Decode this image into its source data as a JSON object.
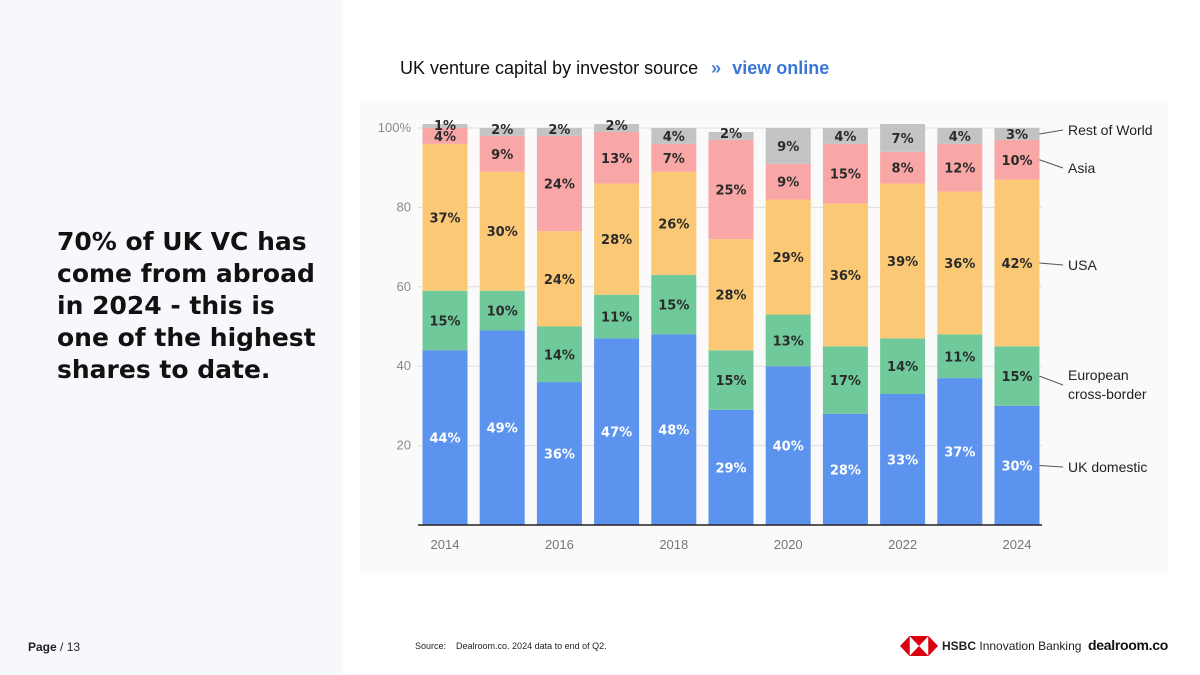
{
  "headline": "70% of UK VC has come from abroad in 2024 - this is one of the highest shares to date.",
  "page": {
    "label": "Page",
    "sep": " / ",
    "number": "13"
  },
  "chart_title": {
    "text": "UK venture capital by investor source",
    "chevron": "»",
    "link": "view online"
  },
  "source": {
    "label": "Source:",
    "text": "Dealroom.co. 2024 data to end of Q2."
  },
  "logos": {
    "hsbc_bold": "HSBC",
    "hsbc_rest": "Innovation Banking",
    "dealroom": "dealroom.co"
  },
  "colors": {
    "uk_domestic": "#5b93ee",
    "european": "#6fc99a",
    "usa": "#fbc875",
    "asia": "#f8a6a6",
    "rest_of_world": "#c3c3c3",
    "hsbc_red": "#db0011"
  },
  "chart_data": {
    "type": "bar",
    "stacked": true,
    "title": "UK venture capital by investor source",
    "categories": [
      "2014",
      "2015",
      "2016",
      "2017",
      "2018",
      "2019",
      "2020",
      "2021",
      "2022",
      "2023",
      "2024"
    ],
    "x_tick_labels": [
      "2014",
      "",
      "2016",
      "",
      "2018",
      "",
      "2020",
      "",
      "2022",
      "",
      "2024"
    ],
    "y_ticks": [
      "20",
      "40",
      "60",
      "80",
      "100%"
    ],
    "y_tick_values": [
      20,
      40,
      60,
      80,
      100
    ],
    "ylim": [
      0,
      100
    ],
    "series": [
      {
        "name": "UK domestic",
        "key": "uk_domestic",
        "values": [
          44,
          49,
          36,
          47,
          48,
          29,
          40,
          28,
          33,
          37,
          30
        ],
        "labels": [
          "44%",
          "49%",
          "36%",
          "47%",
          "48%",
          "29%",
          "40%",
          "28%",
          "33%",
          "37%",
          "30%"
        ]
      },
      {
        "name": "European cross-border",
        "key": "european",
        "values": [
          15,
          10,
          14,
          11,
          15,
          15,
          13,
          17,
          14,
          11,
          15
        ],
        "labels": [
          "15%",
          "10%",
          "14%",
          "11%",
          "15%",
          "15%",
          "13%",
          "17%",
          "14%",
          "11%",
          "15%"
        ]
      },
      {
        "name": "USA",
        "key": "usa",
        "values": [
          37,
          30,
          24,
          28,
          26,
          28,
          29,
          36,
          39,
          36,
          42
        ],
        "labels": [
          "37%",
          "30%",
          "24%",
          "28%",
          "26%",
          "28%",
          "29%",
          "36%",
          "39%",
          "36%",
          "42%"
        ]
      },
      {
        "name": "Asia",
        "key": "asia",
        "values": [
          4,
          9,
          24,
          13,
          7,
          25,
          9,
          15,
          8,
          12,
          10
        ],
        "labels": [
          "4%",
          "9%",
          "24%",
          "13%",
          "7%",
          "25%",
          "9%",
          "15%",
          "8%",
          "12%",
          "10%"
        ]
      },
      {
        "name": "Rest of World",
        "key": "rest_of_world",
        "values": [
          1,
          2,
          2,
          2,
          4,
          2,
          9,
          4,
          7,
          4,
          3
        ],
        "labels": [
          "1%",
          "2%",
          "2%",
          "2%",
          "4%",
          "2%",
          "9%",
          "4%",
          "7%",
          "4%",
          "3%"
        ]
      }
    ],
    "legend": [
      {
        "key": "rest_of_world",
        "lines": [
          "Rest of World"
        ]
      },
      {
        "key": "asia",
        "lines": [
          "Asia"
        ]
      },
      {
        "key": "usa",
        "lines": [
          "USA"
        ]
      },
      {
        "key": "european",
        "lines": [
          "European",
          "cross-border"
        ]
      },
      {
        "key": "uk_domestic",
        "lines": [
          "UK domestic"
        ]
      }
    ],
    "legend_position": "right"
  }
}
